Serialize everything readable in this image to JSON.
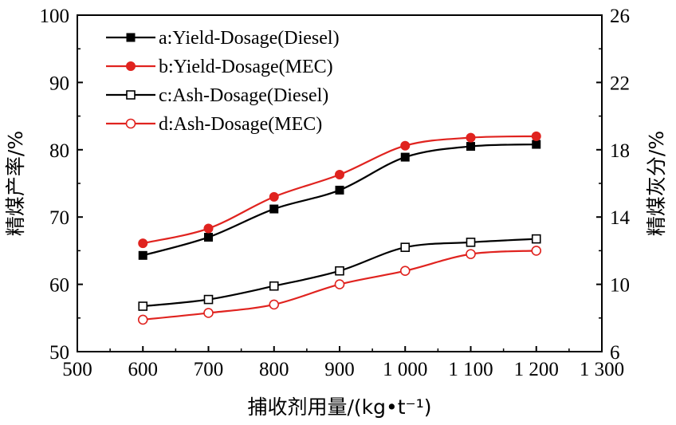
{
  "chart_data": {
    "type": "line",
    "xlabel": "捕收剂用量/(kg•t⁻¹)",
    "ylabel_left": "精煤产率/%",
    "ylabel_right": "精煤灰分/%",
    "xlim": [
      500,
      1300
    ],
    "ylim_left": [
      50,
      100
    ],
    "ylim_right": [
      6,
      26
    ],
    "x_ticks": [
      500,
      600,
      700,
      800,
      900,
      1000,
      1100,
      1200,
      1300
    ],
    "x_tick_labels": [
      "500",
      "600",
      "700",
      "800",
      "900",
      "1 000",
      "1 100",
      "1 200",
      "1 300"
    ],
    "y_left_ticks": [
      50,
      60,
      70,
      80,
      90,
      100
    ],
    "y_left_tick_labels": [
      "50",
      "60",
      "70",
      "80",
      "90",
      "100"
    ],
    "y_right_ticks": [
      6,
      10,
      14,
      18,
      22,
      26
    ],
    "y_right_tick_labels": [
      "6",
      "10",
      "14",
      "18",
      "22",
      "26"
    ],
    "grid": false,
    "legend_position": "top-left",
    "x": [
      600,
      700,
      800,
      900,
      1000,
      1100,
      1200
    ],
    "series": [
      {
        "name": "a:Yield-Dosage(Diesel)",
        "axis": "left",
        "color": "#000000",
        "marker": "square-filled",
        "values": [
          64.3,
          67.0,
          71.2,
          74.0,
          78.9,
          80.5,
          80.8
        ]
      },
      {
        "name": "b:Yield-Dosage(MEC)",
        "axis": "left",
        "color": "#e0231f",
        "marker": "circle-filled",
        "values": [
          66.1,
          68.3,
          73.0,
          76.3,
          80.6,
          81.8,
          82.0
        ]
      },
      {
        "name": "c:Ash-Dosage(Diesel)",
        "axis": "right",
        "color": "#000000",
        "marker": "square-open",
        "values": [
          8.7,
          9.1,
          9.9,
          10.8,
          12.2,
          12.5,
          12.7
        ]
      },
      {
        "name": "d:Ash-Dosage(MEC)",
        "axis": "right",
        "color": "#e0231f",
        "marker": "circle-open",
        "values": [
          7.9,
          8.3,
          8.8,
          10.0,
          10.8,
          11.8,
          12.0
        ]
      }
    ]
  }
}
